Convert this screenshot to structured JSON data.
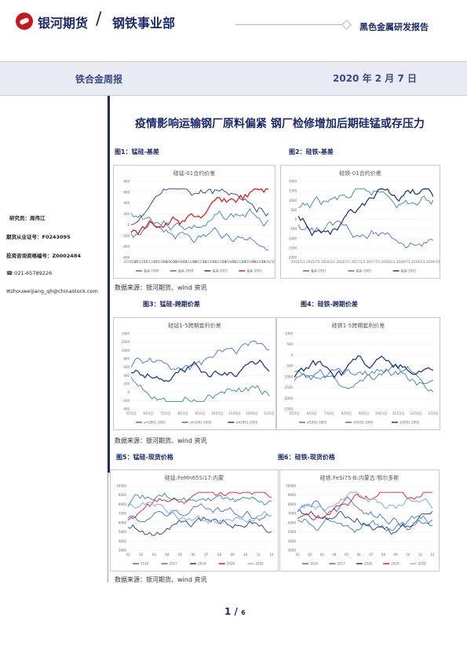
{
  "header": {
    "brand": "银河期货",
    "slash": "/",
    "dept": "钢铁事业部",
    "report_type": "黑色金属研发报告",
    "weekly": "铁合金周报",
    "date": "2020 年 2 月 7 日"
  },
  "title": "疫情影响运输钢厂原料偏紧   钢厂检修增加后期硅锰或存压力",
  "author": {
    "researcher": "研究员：周伟江",
    "license": "期货从业证号：F0243095",
    "consult": "投资咨询资格编号：Z0002484",
    "phone": "☎:021-65789226",
    "email": "✉zhouweijiang_qh@chinastock.com"
  },
  "colors": {
    "navy": "#1b2a6b",
    "blue_dark": "#1f3c88",
    "blue_mid": "#4472c4",
    "teal": "#2e8b9a",
    "red": "#e41a1c",
    "grey": "#b0b5c8"
  },
  "figures": [
    {
      "caption": "图1：锰硅-基差",
      "chart_title": "硅锰-01合约价差",
      "y_ticks": [
        "800",
        "600",
        "400",
        "200",
        "0",
        "-200",
        "-400",
        "-600"
      ],
      "x_ticks": [
        "07/05/17",
        "09/13/17",
        "11/13/17",
        "01/03/18",
        "03/06/18",
        "05/08/18",
        "07/10/18",
        "09/11/18",
        "11/14/18",
        "01/15/19",
        "03/19/19",
        "05/21/19",
        "07/23/19",
        "09/24/19",
        "11/26/19"
      ],
      "legend": [
        "基差-1906",
        "基差-1909",
        "基差-2001",
        "基差-2005"
      ]
    },
    {
      "caption": "图2：硅铁-基差",
      "chart_title": "硅铁-01合约价差",
      "y_ticks": [
        "2000",
        "1500",
        "1000",
        "500",
        "0",
        "-500",
        "-1000",
        "-1500",
        "-2000"
      ],
      "x_ticks": [
        "2015/1/1",
        "2015/7/1",
        "2016/1/1",
        "2016/7/1",
        "2017/1/1",
        "2017/7/1",
        "2018/1/1",
        "2018/7/1",
        "2019/1/1",
        "2019/7/1"
      ],
      "legend": [
        "基差-1901",
        "基差-1905",
        "基差-2001"
      ]
    },
    {
      "caption": "图3：锰硅-跨期价差",
      "chart_title": "硅锰1-5跨期套利价差",
      "y_ticks": [
        "1400",
        "1200",
        "1000",
        "800",
        "600",
        "400",
        "200",
        "0",
        "-200",
        "-400"
      ],
      "x_ticks": [
        "5月1日",
        "6月1日",
        "7月1日",
        "8月1日",
        "9月1日",
        "10月1日",
        "11月1日",
        "12月1日",
        "1月1日"
      ],
      "legend": [
        "sm1801-1805",
        "sm1901-1905",
        "sm2001-2005"
      ]
    },
    {
      "caption": "图4：硅铁-跨期价差",
      "chart_title": "硅铁1-5跨期套利价差",
      "y_ticks": [
        "1000",
        "500",
        "0",
        "-500",
        "-1000",
        "-1500",
        "-2000",
        "-2500"
      ],
      "x_ticks": [
        "5月1日",
        "6月1日",
        "7月1日",
        "8月1日",
        "9月1日",
        "10月1日",
        "11月1日",
        "12月1日",
        "1月1日"
      ],
      "legend": [
        "sf1801-1805",
        "sf1901-1905",
        "sf2001-2005"
      ]
    },
    {
      "caption": "图5：锰硅-现货价格",
      "chart_title": "硅锰:FeMn65Si17:内蒙",
      "y_ticks": [
        "10000",
        "9000",
        "8000",
        "7000",
        "6000",
        "5000",
        "4000",
        "3000"
      ],
      "x_ticks": [
        "01",
        "02",
        "03",
        "04",
        "05",
        "06",
        "07",
        "08",
        "09",
        "10",
        "11",
        "12"
      ],
      "legend": [
        "2016",
        "2017",
        "2018",
        "2019",
        "2020"
      ]
    },
    {
      "caption": "图6：硅铁-现货价格",
      "chart_title": "硅铁:FeSi75-B:内蒙古:鄂尔多斯",
      "y_ticks": [
        "10000",
        "9000",
        "8000",
        "7000",
        "6000",
        "5000",
        "4000",
        "3000"
      ],
      "x_ticks": [
        "01",
        "02",
        "03",
        "04",
        "05",
        "06",
        "07",
        "08",
        "09",
        "10",
        "11",
        "12"
      ],
      "legend": [
        "2016",
        "2017",
        "2018",
        "2019",
        "2020"
      ]
    }
  ],
  "source": "数据来源：银河期货、wind 资讯",
  "page": {
    "current": "1",
    "sep": " / ",
    "total": "6"
  }
}
